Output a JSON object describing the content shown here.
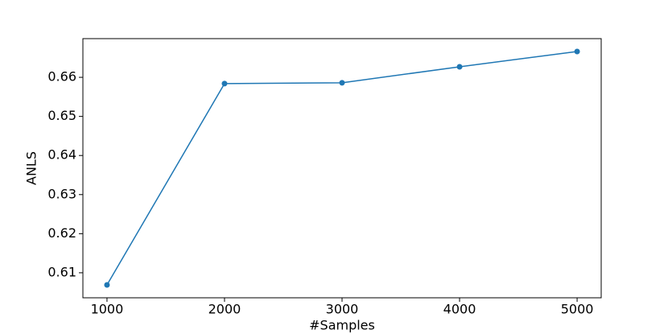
{
  "chart_data": {
    "type": "line",
    "x_label": "#Samples",
    "y_label": "ANLS",
    "x": [
      1000,
      2000,
      3000,
      4000,
      5000
    ],
    "series": [
      {
        "name": "ANLS",
        "color": "#1f77b4",
        "values": [
          0.6069,
          0.6584,
          0.6586,
          0.6627,
          0.6666
        ]
      }
    ],
    "xlim": [
      795,
      5205
    ],
    "xticks": [
      1000,
      2000,
      3000,
      4000,
      5000
    ],
    "ylim": [
      0.6036,
      0.6699
    ],
    "yticks": [
      0.61,
      0.62,
      0.63,
      0.64,
      0.65,
      0.66
    ]
  }
}
